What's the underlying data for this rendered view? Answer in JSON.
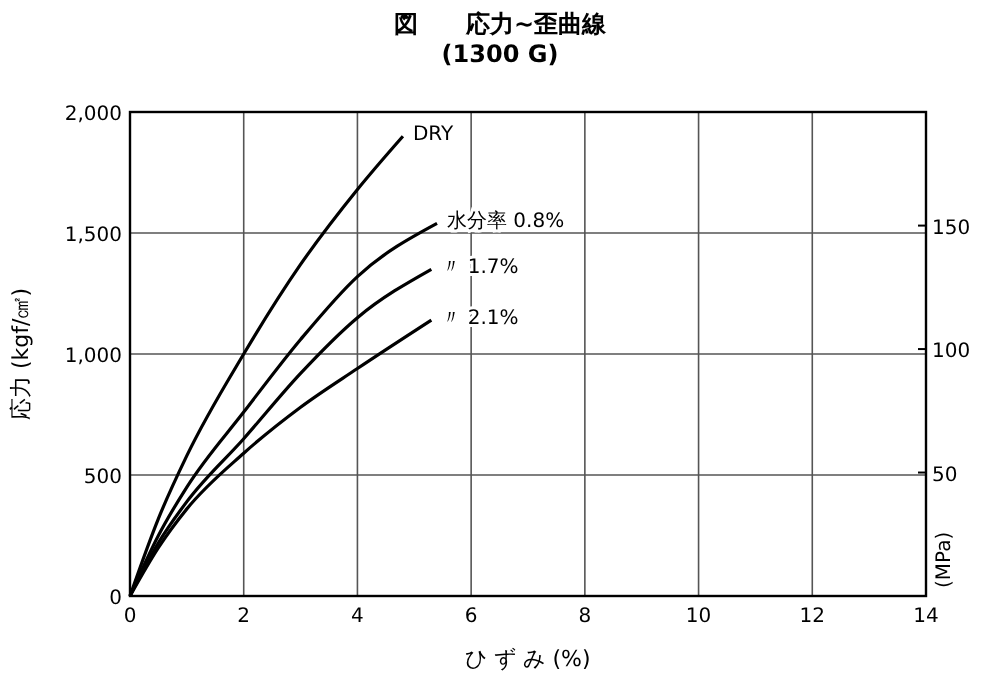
{
  "chart_data": {
    "type": "line",
    "title": "図　　応力~歪曲線",
    "subtitle": "(1300 G)",
    "xlabel": "ひ ず み (%)",
    "ylabel": "応力 (kgf/㎠)",
    "y2label": "(MPa)",
    "series": [
      {
        "name": "DRY",
        "color": "#000000",
        "x": [
          0,
          0.5,
          1,
          2,
          3,
          4,
          4.8
        ],
        "values": [
          0,
          320,
          580,
          1000,
          1370,
          1680,
          1900
        ]
      },
      {
        "name": "水分率 0.8%",
        "color": "#000000",
        "x": [
          0,
          0.5,
          1,
          2,
          3,
          4,
          5.4
        ],
        "values": [
          0,
          250,
          450,
          760,
          1060,
          1320,
          1540
        ]
      },
      {
        "name": "〃 1.7%",
        "color": "#000000",
        "x": [
          0,
          0.5,
          1,
          2,
          3,
          4,
          5.3
        ],
        "values": [
          0,
          220,
          390,
          650,
          920,
          1150,
          1350
        ]
      },
      {
        "name": "〃 2.1%",
        "color": "#000000",
        "x": [
          0,
          0.5,
          1,
          2,
          3,
          4,
          5.3
        ],
        "values": [
          0,
          200,
          360,
          590,
          780,
          940,
          1140
        ]
      }
    ],
    "xlim": [
      0,
      14
    ],
    "xticks": [
      0,
      2,
      4,
      6,
      8,
      10,
      12,
      14
    ],
    "ylim": [
      0,
      2000
    ],
    "yticks": [
      {
        "value": 0,
        "label": "0"
      },
      {
        "value": 500,
        "label": "500"
      },
      {
        "value": 1000,
        "label": "1,000"
      },
      {
        "value": 1500,
        "label": "1,500"
      },
      {
        "value": 2000,
        "label": "2,000"
      }
    ],
    "y2lim": [
      0,
      196
    ],
    "y2ticks": [
      50,
      100,
      150
    ],
    "grid": true,
    "marker": "none",
    "line_style": "solid"
  }
}
